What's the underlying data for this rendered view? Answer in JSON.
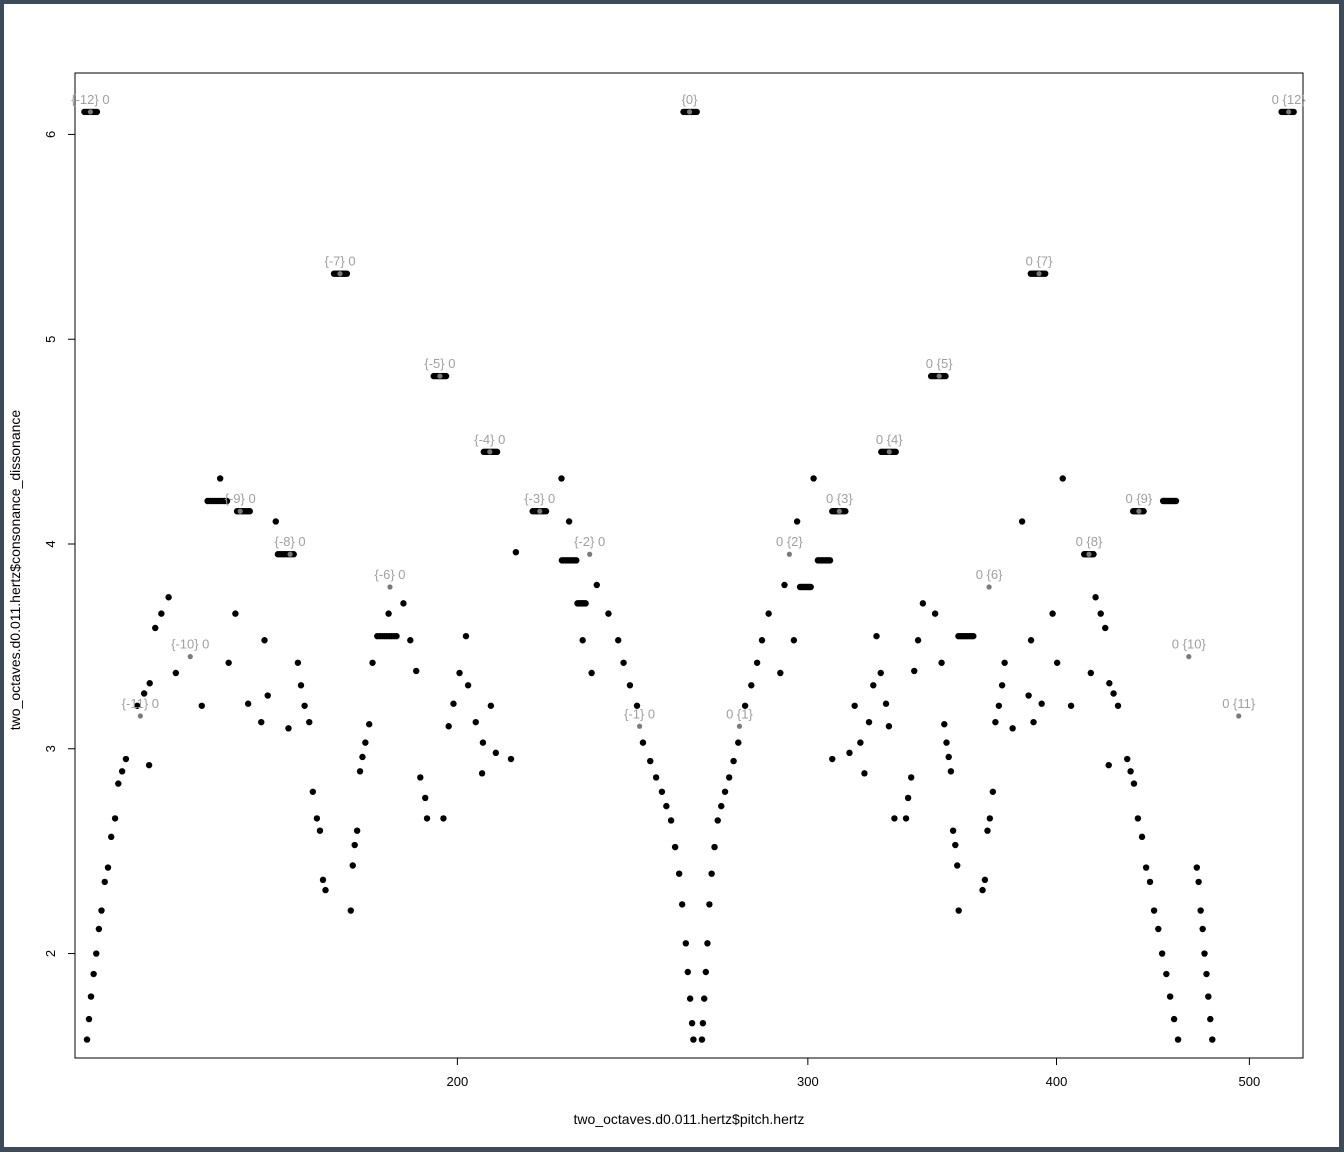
{
  "chart_data": {
    "type": "scatter",
    "title": "",
    "xlabel": "two_octaves.d0.011.hertz$pitch.hertz",
    "ylabel": "two_octaves.d0.011.hertz$consonance_dissonance",
    "x_scale": "log",
    "xlim": [
      128.5,
      532
    ],
    "ylim": [
      1.49,
      6.3
    ],
    "x_ticks": [
      200,
      300,
      400,
      500
    ],
    "y_ticks": [
      2,
      3,
      4,
      5,
      6
    ],
    "grid": false,
    "legend": "none",
    "point_color": "#000000",
    "label_color": "#a0a0a0",
    "key_points": [
      {
        "x": 130.81,
        "y": 6.11,
        "label": "{-12} 0"
      },
      {
        "x": 138.59,
        "y": 3.16,
        "label": "{-11} 0"
      },
      {
        "x": 146.83,
        "y": 3.45,
        "label": "{-10} 0"
      },
      {
        "x": 155.56,
        "y": 4.16,
        "label": "{-9} 0"
      },
      {
        "x": 164.81,
        "y": 3.95,
        "label": "{-8} 0"
      },
      {
        "x": 174.61,
        "y": 5.32,
        "label": "{-7} 0"
      },
      {
        "x": 185.0,
        "y": 3.79,
        "label": "{-6} 0"
      },
      {
        "x": 196.0,
        "y": 4.82,
        "label": "{-5} 0"
      },
      {
        "x": 207.65,
        "y": 4.45,
        "label": "{-4} 0"
      },
      {
        "x": 220.0,
        "y": 4.16,
        "label": "{-3} 0"
      },
      {
        "x": 233.08,
        "y": 3.95,
        "label": "{-2} 0"
      },
      {
        "x": 246.94,
        "y": 3.11,
        "label": "{-1} 0"
      },
      {
        "x": 261.63,
        "y": 6.11,
        "label": "{0}"
      },
      {
        "x": 277.18,
        "y": 3.11,
        "label": "0 {1}"
      },
      {
        "x": 293.66,
        "y": 3.95,
        "label": "0 {2}"
      },
      {
        "x": 311.13,
        "y": 4.16,
        "label": "0 {3}"
      },
      {
        "x": 329.63,
        "y": 4.45,
        "label": "0 {4}"
      },
      {
        "x": 349.23,
        "y": 4.82,
        "label": "0 {5}"
      },
      {
        "x": 369.99,
        "y": 3.79,
        "label": "0 {6}"
      },
      {
        "x": 392.0,
        "y": 5.32,
        "label": "0 {7}"
      },
      {
        "x": 415.3,
        "y": 3.95,
        "label": "0 {8}"
      },
      {
        "x": 440.0,
        "y": 4.16,
        "label": "0 {9}"
      },
      {
        "x": 466.16,
        "y": 3.45,
        "label": "0 {10}"
      },
      {
        "x": 493.88,
        "y": 3.16,
        "label": "0 {11}"
      },
      {
        "x": 523.25,
        "y": 6.11,
        "label": "0 {12}"
      }
    ],
    "plateaus": [
      {
        "x": [
          129.9,
          131.8
        ],
        "y": 6.11
      },
      {
        "x": [
          173.4,
          176.0
        ],
        "y": 5.32
      },
      {
        "x": [
          194.6,
          197.4
        ],
        "y": 4.82
      },
      {
        "x": [
          206.2,
          209.4
        ],
        "y": 4.45
      },
      {
        "x": [
          218.2,
          221.6
        ],
        "y": 4.16
      },
      {
        "x": [
          259.8,
          263.8
        ],
        "y": 6.11
      },
      {
        "x": [
          308.6,
          313.3
        ],
        "y": 4.16
      },
      {
        "x": [
          326.6,
          332.1
        ],
        "y": 4.45
      },
      {
        "x": [
          346.0,
          351.8
        ],
        "y": 4.82
      },
      {
        "x": [
          388.3,
          394.8
        ],
        "y": 5.32
      },
      {
        "x": [
          519.0,
          526.3
        ],
        "y": 6.11
      },
      {
        "x": [
          149.8,
          153.2
        ],
        "y": 4.21
      },
      {
        "x": [
          155.0,
          157.3
        ],
        "y": 4.16
      },
      {
        "x": [
          162.5,
          165.5
        ],
        "y": 3.95
      },
      {
        "x": [
          225.7,
          229.5
        ],
        "y": 3.92
      },
      {
        "x": [
          229.8,
          232.0
        ],
        "y": 3.71
      },
      {
        "x": [
          297.3,
          301.0
        ],
        "y": 3.79
      },
      {
        "x": [
          303.5,
          307.8
        ],
        "y": 3.92
      },
      {
        "x": [
          413.0,
          417.5
        ],
        "y": 3.95
      },
      {
        "x": [
          437.1,
          442.4
        ],
        "y": 4.16
      },
      {
        "x": [
          452.5,
          459.3
        ],
        "y": 4.21
      },
      {
        "x": [
          182.3,
          186.4
        ],
        "y": 3.55
      },
      {
        "x": [
          357.1,
          363.3
        ],
        "y": 3.55
      }
    ],
    "scattered_points": [
      [
        130.3,
        1.58
      ],
      [
        130.6,
        1.68
      ],
      [
        130.9,
        1.79
      ],
      [
        131.3,
        1.9
      ],
      [
        131.7,
        2.0
      ],
      [
        132.1,
        2.12
      ],
      [
        132.5,
        2.21
      ],
      [
        133.0,
        2.35
      ],
      [
        133.5,
        2.42
      ],
      [
        134.0,
        2.57
      ],
      [
        134.6,
        2.66
      ],
      [
        135.1,
        2.83
      ],
      [
        135.7,
        2.89
      ],
      [
        136.3,
        2.95
      ],
      [
        138.1,
        3.21
      ],
      [
        139.2,
        3.27
      ],
      [
        140.1,
        3.32
      ],
      [
        140.0,
        2.92
      ],
      [
        141.0,
        3.59
      ],
      [
        142.0,
        3.66
      ],
      [
        143.2,
        3.74
      ],
      [
        144.4,
        3.37
      ],
      [
        148.8,
        3.21
      ],
      [
        152.0,
        4.32
      ],
      [
        153.5,
        3.42
      ],
      [
        154.7,
        3.66
      ],
      [
        157.0,
        3.22
      ],
      [
        159.4,
        3.13
      ],
      [
        160.0,
        3.53
      ],
      [
        160.6,
        3.26
      ],
      [
        162.1,
        4.11
      ],
      [
        164.5,
        3.1
      ],
      [
        166.3,
        3.42
      ],
      [
        166.9,
        3.31
      ],
      [
        167.6,
        3.21
      ],
      [
        168.5,
        3.13
      ],
      [
        169.2,
        2.79
      ],
      [
        170.0,
        2.66
      ],
      [
        170.6,
        2.6
      ],
      [
        171.2,
        2.36
      ],
      [
        171.7,
        2.31
      ],
      [
        176.8,
        2.21
      ],
      [
        177.2,
        2.43
      ],
      [
        177.6,
        2.53
      ],
      [
        178.1,
        2.6
      ],
      [
        178.7,
        2.89
      ],
      [
        179.2,
        2.96
      ],
      [
        179.8,
        3.03
      ],
      [
        180.6,
        3.12
      ],
      [
        181.3,
        3.42
      ],
      [
        184.7,
        3.66
      ],
      [
        187.9,
        3.71
      ],
      [
        189.4,
        3.53
      ],
      [
        190.7,
        3.38
      ],
      [
        191.6,
        2.86
      ],
      [
        192.7,
        2.76
      ],
      [
        193.1,
        2.66
      ],
      [
        196.8,
        2.66
      ],
      [
        198.0,
        3.11
      ],
      [
        199.1,
        3.22
      ],
      [
        200.5,
        3.37
      ],
      [
        202.5,
        3.31
      ],
      [
        202.0,
        3.55
      ],
      [
        204.3,
        3.13
      ],
      [
        205.8,
        2.88
      ],
      [
        206.0,
        3.03
      ],
      [
        207.9,
        3.21
      ],
      [
        209.1,
        2.98
      ],
      [
        212.8,
        2.95
      ],
      [
        214.0,
        3.96
      ],
      [
        225.6,
        4.32
      ],
      [
        227.6,
        4.11
      ],
      [
        231.2,
        3.53
      ],
      [
        233.6,
        3.37
      ],
      [
        235.0,
        3.8
      ],
      [
        238.2,
        3.66
      ],
      [
        240.9,
        3.53
      ],
      [
        242.4,
        3.42
      ],
      [
        244.2,
        3.31
      ],
      [
        246.2,
        3.21
      ],
      [
        247.9,
        3.03
      ],
      [
        250.0,
        2.94
      ],
      [
        251.7,
        2.86
      ],
      [
        253.4,
        2.79
      ],
      [
        254.7,
        2.72
      ],
      [
        256.1,
        2.65
      ],
      [
        257.3,
        2.52
      ],
      [
        258.5,
        2.39
      ],
      [
        259.4,
        2.24
      ],
      [
        260.5,
        2.05
      ],
      [
        261.1,
        1.91
      ],
      [
        261.8,
        1.78
      ],
      [
        262.4,
        1.66
      ],
      [
        262.8,
        1.58
      ],
      [
        265.4,
        1.58
      ],
      [
        265.7,
        1.66
      ],
      [
        266.1,
        1.78
      ],
      [
        266.6,
        1.91
      ],
      [
        267.1,
        2.05
      ],
      [
        267.7,
        2.24
      ],
      [
        268.4,
        2.39
      ],
      [
        269.3,
        2.52
      ],
      [
        270.3,
        2.65
      ],
      [
        271.4,
        2.72
      ],
      [
        272.6,
        2.79
      ],
      [
        273.9,
        2.86
      ],
      [
        275.3,
        2.94
      ],
      [
        276.8,
        3.03
      ],
      [
        279.0,
        3.21
      ],
      [
        281.0,
        3.31
      ],
      [
        282.9,
        3.42
      ],
      [
        284.5,
        3.53
      ],
      [
        286.7,
        3.66
      ],
      [
        290.6,
        3.37
      ],
      [
        292.0,
        3.8
      ],
      [
        295.2,
        3.53
      ],
      [
        296.3,
        4.11
      ],
      [
        302.0,
        4.32
      ],
      [
        308.6,
        2.95
      ],
      [
        314.8,
        2.98
      ],
      [
        316.7,
        3.21
      ],
      [
        318.8,
        3.03
      ],
      [
        320.3,
        2.88
      ],
      [
        322.0,
        3.13
      ],
      [
        323.6,
        3.31
      ],
      [
        324.8,
        3.55
      ],
      [
        326.4,
        3.37
      ],
      [
        328.4,
        3.22
      ],
      [
        329.5,
        3.11
      ],
      [
        331.6,
        2.66
      ],
      [
        336.1,
        2.66
      ],
      [
        336.9,
        2.76
      ],
      [
        338.1,
        2.86
      ],
      [
        339.3,
        3.38
      ],
      [
        340.8,
        3.53
      ],
      [
        342.7,
        3.71
      ],
      [
        347.6,
        3.66
      ],
      [
        350.2,
        3.42
      ],
      [
        351.3,
        3.12
      ],
      [
        352.2,
        3.03
      ],
      [
        353.1,
        2.96
      ],
      [
        354.0,
        2.89
      ],
      [
        354.9,
        2.6
      ],
      [
        355.8,
        2.53
      ],
      [
        356.6,
        2.43
      ],
      [
        357.2,
        2.21
      ],
      [
        367.2,
        2.31
      ],
      [
        368.2,
        2.36
      ],
      [
        369.3,
        2.6
      ],
      [
        370.3,
        2.66
      ],
      [
        371.6,
        2.79
      ],
      [
        372.7,
        3.13
      ],
      [
        374.2,
        3.21
      ],
      [
        375.6,
        3.31
      ],
      [
        376.7,
        3.42
      ],
      [
        380.2,
        3.1
      ],
      [
        384.4,
        4.11
      ],
      [
        387.3,
        3.26
      ],
      [
        388.4,
        3.53
      ],
      [
        389.5,
        3.13
      ],
      [
        393.2,
        3.22
      ],
      [
        398.2,
        3.66
      ],
      [
        400.3,
        3.42
      ],
      [
        402.9,
        4.32
      ],
      [
        406.8,
        3.21
      ],
      [
        416.2,
        3.37
      ],
      [
        418.5,
        3.74
      ],
      [
        421.0,
        3.66
      ],
      [
        423.2,
        3.59
      ],
      [
        424.9,
        2.92
      ],
      [
        425.2,
        3.32
      ],
      [
        427.3,
        3.27
      ],
      [
        429.5,
        3.21
      ],
      [
        434.1,
        2.95
      ],
      [
        435.8,
        2.89
      ],
      [
        437.5,
        2.83
      ],
      [
        439.5,
        2.66
      ],
      [
        441.6,
        2.57
      ],
      [
        443.7,
        2.42
      ],
      [
        445.7,
        2.35
      ],
      [
        447.8,
        2.21
      ],
      [
        450.0,
        2.12
      ],
      [
        452.0,
        2.0
      ],
      [
        454.2,
        1.9
      ],
      [
        456.2,
        1.79
      ],
      [
        458.3,
        1.68
      ],
      [
        460.4,
        1.58
      ],
      [
        470.5,
        2.42
      ],
      [
        471.5,
        2.35
      ],
      [
        472.6,
        2.21
      ],
      [
        473.7,
        2.12
      ],
      [
        474.7,
        2.0
      ],
      [
        475.8,
        1.9
      ],
      [
        476.8,
        1.79
      ],
      [
        477.9,
        1.68
      ],
      [
        479.0,
        1.58
      ]
    ]
  }
}
